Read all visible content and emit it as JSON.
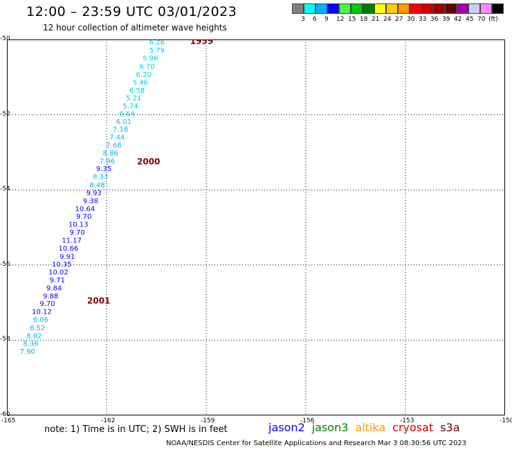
{
  "header": {
    "title": "12:00 – 23:59 UTC 03/01/2023",
    "subtitle": "12 hour collection of altimeter wave heights"
  },
  "legend": {
    "colors": [
      "#808080",
      "#00ffff",
      "#00b4ff",
      "#0000ff",
      "#40ff40",
      "#00cc00",
      "#008000",
      "#ffff00",
      "#ffcc00",
      "#ff9900",
      "#ff0000",
      "#cc0000",
      "#990000",
      "#660000",
      "#aa00aa",
      "#ccccff",
      "#ff88ff",
      "#000000"
    ],
    "labels": [
      "3",
      "6",
      "9",
      "12",
      "15",
      "18",
      "21",
      "24",
      "27",
      "30",
      "33",
      "36",
      "39",
      "42",
      "45",
      "70"
    ],
    "unit": "(ft)"
  },
  "chart_data": {
    "type": "scatter",
    "title": "12:00 – 23:59 UTC 03/01/2023",
    "subtitle": "12 hour collection of altimeter wave heights",
    "xlabel": "",
    "ylabel": "",
    "xlim": [
      -165,
      -150
    ],
    "ylim": [
      -60,
      -50
    ],
    "xticks": [
      "-165",
      "-162",
      "-159",
      "-156",
      "-153",
      "-150"
    ],
    "yticks": [
      "-50",
      "-52",
      "-54",
      "-56",
      "-58",
      "-60"
    ],
    "grid": true,
    "points": [
      {
        "lon": -160.5,
        "lat": -50.06,
        "swh": "6.26",
        "color": "#00c8e6"
      },
      {
        "lon": -160.5,
        "lat": -50.28,
        "swh": "5.79",
        "color": "#00c8e6"
      },
      {
        "lon": -160.7,
        "lat": -50.49,
        "swh": "5.96",
        "color": "#00c8e6"
      },
      {
        "lon": -160.8,
        "lat": -50.71,
        "swh": "6.70",
        "color": "#00c8e6"
      },
      {
        "lon": -160.9,
        "lat": -50.92,
        "swh": "6.20",
        "color": "#00c8e6"
      },
      {
        "lon": -161.0,
        "lat": -51.13,
        "swh": "5.46",
        "color": "#00c8e6"
      },
      {
        "lon": -161.1,
        "lat": -51.34,
        "swh": "6.58",
        "color": "#00c8e6"
      },
      {
        "lon": -161.2,
        "lat": -51.55,
        "swh": "5.21",
        "color": "#00c8e6"
      },
      {
        "lon": -161.3,
        "lat": -51.76,
        "swh": "5.74",
        "color": "#00c8e6"
      },
      {
        "lon": -161.4,
        "lat": -51.96,
        "swh": "6.64",
        "color": "#00c8e6"
      },
      {
        "lon": -161.5,
        "lat": -52.17,
        "swh": "6.01",
        "color": "#00c8e6"
      },
      {
        "lon": -161.6,
        "lat": -52.38,
        "swh": "7.18",
        "color": "#00b4ff"
      },
      {
        "lon": -161.7,
        "lat": -52.59,
        "swh": "7.44",
        "color": "#00b4ff"
      },
      {
        "lon": -161.8,
        "lat": -52.8,
        "swh": "7.68",
        "color": "#00b4ff"
      },
      {
        "lon": -161.9,
        "lat": -53.01,
        "swh": "8.86",
        "color": "#00b4ff"
      },
      {
        "lon": -162.0,
        "lat": -53.22,
        "swh": "7.96",
        "color": "#00b4ff"
      },
      {
        "lon": -162.1,
        "lat": -53.43,
        "swh": "9.35",
        "color": "#0000ff"
      },
      {
        "lon": -162.2,
        "lat": -53.64,
        "swh": "8.33",
        "color": "#00b4ff"
      },
      {
        "lon": -162.3,
        "lat": -53.86,
        "swh": "8.48",
        "color": "#00b4ff"
      },
      {
        "lon": -162.4,
        "lat": -54.07,
        "swh": "9.93",
        "color": "#0000ff"
      },
      {
        "lon": -162.5,
        "lat": -54.28,
        "swh": "9.38",
        "color": "#0000ff"
      },
      {
        "lon": -162.6,
        "lat": -54.49,
        "swh": "10.64",
        "color": "#0000ff"
      },
      {
        "lon": -162.7,
        "lat": -54.7,
        "swh": "9.70",
        "color": "#0000ff"
      },
      {
        "lon": -162.8,
        "lat": -54.91,
        "swh": "10.13",
        "color": "#0000ff"
      },
      {
        "lon": -162.9,
        "lat": -55.12,
        "swh": "9.70",
        "color": "#0000ff"
      },
      {
        "lon": -163.0,
        "lat": -55.33,
        "swh": "11.17",
        "color": "#0000ff"
      },
      {
        "lon": -163.1,
        "lat": -55.54,
        "swh": "10.66",
        "color": "#0000ff"
      },
      {
        "lon": -163.2,
        "lat": -55.76,
        "swh": "9.91",
        "color": "#0000ff"
      },
      {
        "lon": -163.3,
        "lat": -55.97,
        "swh": "10.35",
        "color": "#0000ff"
      },
      {
        "lon": -163.4,
        "lat": -56.18,
        "swh": "10.02",
        "color": "#0000ff"
      },
      {
        "lon": -163.5,
        "lat": -56.39,
        "swh": "9.71",
        "color": "#0000ff"
      },
      {
        "lon": -163.6,
        "lat": -56.6,
        "swh": "9.84",
        "color": "#0000ff"
      },
      {
        "lon": -163.7,
        "lat": -56.81,
        "swh": "9.88",
        "color": "#0000ff"
      },
      {
        "lon": -163.8,
        "lat": -57.02,
        "swh": "9.70",
        "color": "#0000ff"
      },
      {
        "lon": -163.9,
        "lat": -57.23,
        "swh": "10.12",
        "color": "#0000ff"
      },
      {
        "lon": -164.0,
        "lat": -57.44,
        "swh": "8.06",
        "color": "#00b4ff"
      },
      {
        "lon": -164.1,
        "lat": -57.66,
        "swh": "8.52",
        "color": "#00b4ff"
      },
      {
        "lon": -164.2,
        "lat": -57.87,
        "swh": "8.92",
        "color": "#00b4ff"
      },
      {
        "lon": -164.3,
        "lat": -58.08,
        "swh": "8.36",
        "color": "#00b4ff"
      },
      {
        "lon": -164.4,
        "lat": -58.29,
        "swh": "7.90",
        "color": "#00b4ff"
      }
    ],
    "time_labels": [
      {
        "text": "1959",
        "lon": -159.4,
        "lat": -50.05
      },
      {
        "text": "2000",
        "lon": -161.0,
        "lat": -53.25
      },
      {
        "text": "2001",
        "lon": -162.5,
        "lat": -56.95
      }
    ]
  },
  "footer": {
    "note": "note: 1) Time is in UTC; 2) SWH is in feet",
    "credit": "NOAA/NESDIS Center for Satellite Applications and Research    Mar  3 08:30:56 UTC 2023"
  },
  "satellites": [
    {
      "name": "jason2",
      "color": "#0000ff"
    },
    {
      "name": "jason3",
      "color": "#008000"
    },
    {
      "name": "altika",
      "color": "#ff9900"
    },
    {
      "name": "cryosat",
      "color": "#cc0000"
    },
    {
      "name": "s3a",
      "color": "#660000"
    }
  ]
}
